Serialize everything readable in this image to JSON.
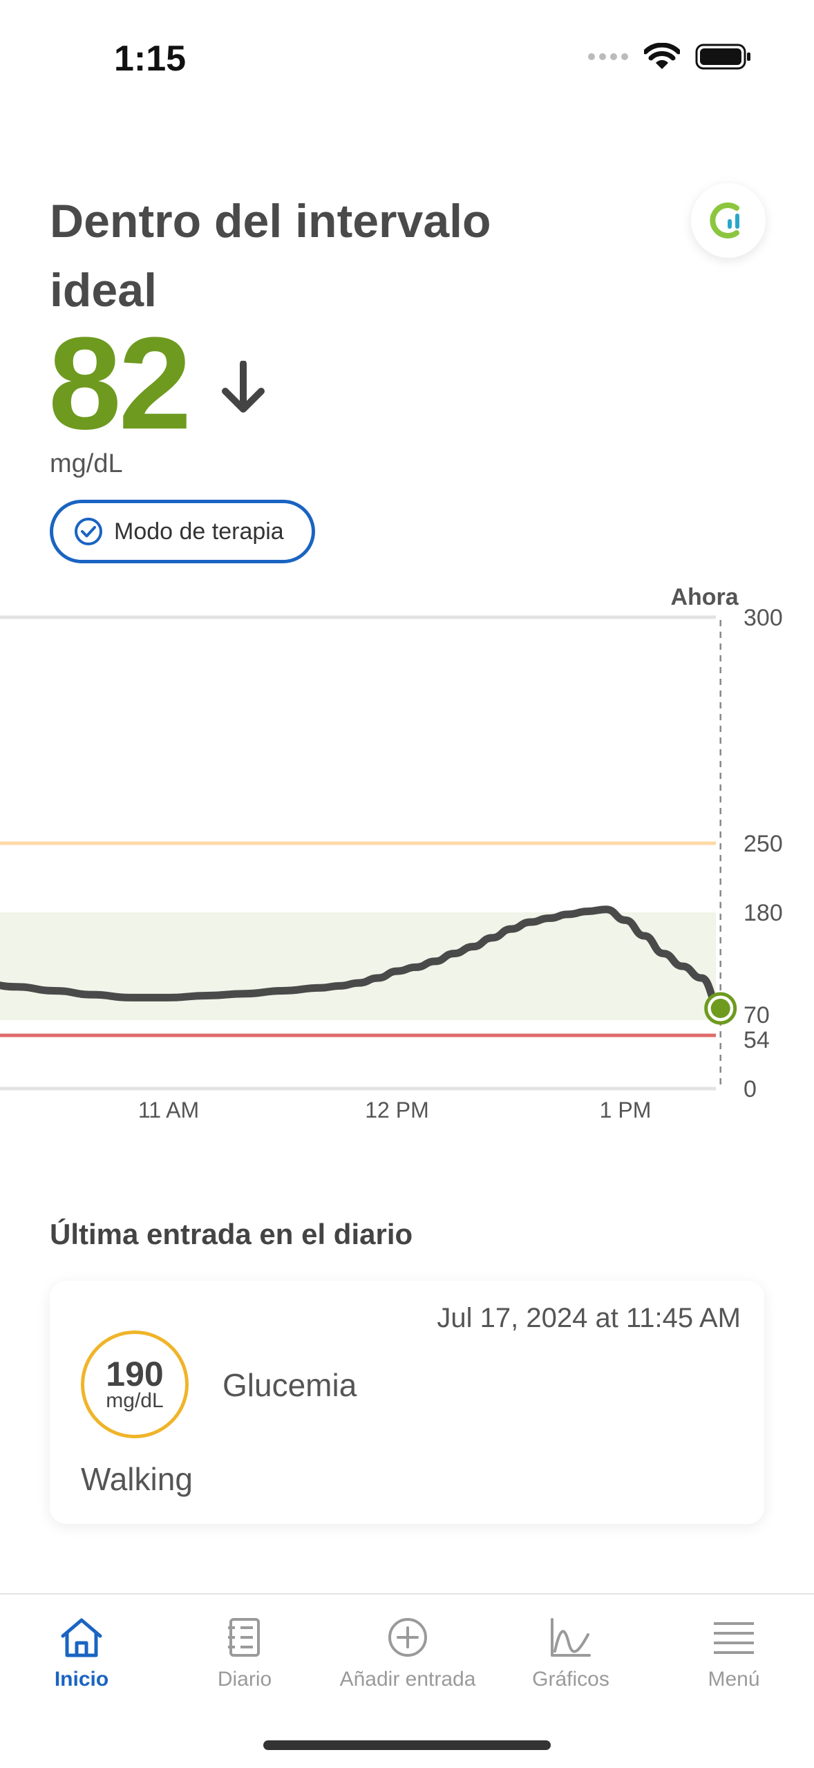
{
  "status_bar": {
    "time": "1:15"
  },
  "header": {
    "title": "Dentro del intervalo ideal",
    "logo_icon": "app-logo-icon"
  },
  "glucose": {
    "value": "82",
    "unit": "mg/dL",
    "trend": "arrow-down-icon",
    "color": "#6e9a1f"
  },
  "therapy_mode": {
    "label": "Modo de terapia",
    "color": "#1a64c2"
  },
  "chart_data": {
    "type": "line",
    "now_label": "Ahora",
    "y_ticks": [
      "300",
      "250",
      "180",
      "70",
      "54",
      "0"
    ],
    "x_ticks": [
      "11 AM",
      "12 PM",
      "1 PM"
    ],
    "ylim": [
      0,
      300
    ],
    "target_range": [
      70,
      180
    ],
    "high_threshold": 250,
    "low_threshold": 54,
    "colors": {
      "line": "#4a4a4a",
      "target_band": "#f1f4e9",
      "high_line": "#fdd9a6",
      "low_line": "#e06b6b",
      "current_point": "#6e9a1f"
    },
    "series": [
      {
        "x": [
          "10:00",
          "10:10",
          "10:20",
          "10:30",
          "10:40",
          "10:50",
          "11:00",
          "11:10",
          "11:20",
          "11:30",
          "11:40",
          "11:45",
          "11:50",
          "11:55",
          "12:00",
          "12:05",
          "12:10",
          "12:15",
          "12:20",
          "12:25",
          "12:30",
          "12:35",
          "12:40",
          "12:45",
          "12:50",
          "12:55",
          "13:00",
          "13:05",
          "13:10",
          "13:15",
          "13:20",
          "13:25"
        ],
        "values": [
          110,
          108,
          104,
          100,
          96,
          93,
          93,
          95,
          97,
          100,
          103,
          105,
          108,
          113,
          120,
          124,
          130,
          138,
          145,
          154,
          163,
          170,
          174,
          178,
          181,
          183,
          172,
          156,
          138,
          125,
          113,
          82
        ]
      }
    ]
  },
  "journal": {
    "section_title": "Última entrada en el diario",
    "entry": {
      "date": "Jul 17, 2024 at 11:45 AM",
      "value": "190",
      "unit": "mg/dL",
      "type": "Glucemia",
      "note": "Walking",
      "ring_color": "#f0b429"
    }
  },
  "nav": {
    "items": [
      {
        "label": "Inicio",
        "icon": "home-icon",
        "active": true
      },
      {
        "label": "Diario",
        "icon": "journal-icon",
        "active": false
      },
      {
        "label": "Añadir entrada",
        "icon": "add-entry-icon",
        "active": false
      },
      {
        "label": "Gráficos",
        "icon": "chart-icon",
        "active": false
      },
      {
        "label": "Menú",
        "icon": "menu-icon",
        "active": false
      }
    ]
  }
}
